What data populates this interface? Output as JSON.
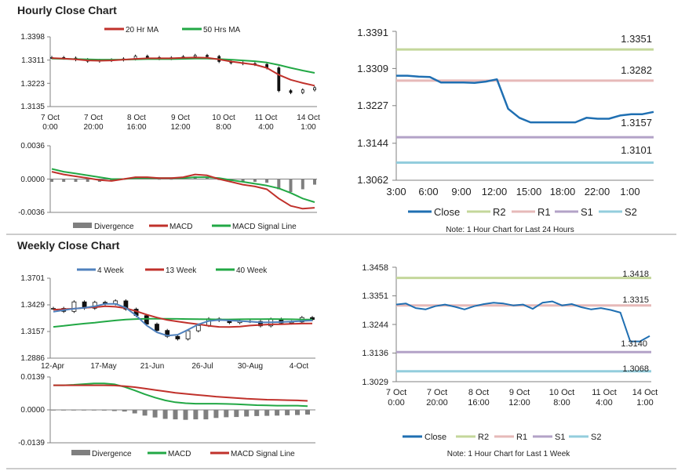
{
  "titles": {
    "hourly": "Hourly Close Chart",
    "weekly": "Weekly Close Chart"
  },
  "colors": {
    "ma20": "#c0312b",
    "ma50": "#22a845",
    "w4": "#4f81bd",
    "w13": "#c0312b",
    "w40": "#22a845",
    "macd_red": "#c0312b",
    "signal_green": "#22a845",
    "close": "#1f6fb2",
    "r2": "#c4d79b",
    "r1": "#e6b9b8",
    "s1": "#b3a2c7",
    "s2": "#93cddd",
    "divergence": "#7f7f7f",
    "axis": "#808080",
    "text": "#222222"
  },
  "chart_data": [
    {
      "id": "hourly_price",
      "type": "line",
      "legend": [
        "20 Hr MA",
        "50 Hrs MA"
      ],
      "y_ticks": [
        "1.3398",
        "1.3311",
        "1.3223",
        "1.3135"
      ],
      "ylim": [
        1.3135,
        1.3398
      ],
      "x_ticks": [
        [
          "7 Oct",
          "0:00"
        ],
        [
          "7 Oct",
          "20:00"
        ],
        [
          "8 Oct",
          "16:00"
        ],
        [
          "9 Oct",
          "12:00"
        ],
        [
          "10 Oct",
          "8:00"
        ],
        [
          "11 Oct",
          "4:00"
        ],
        [
          "14 Oct",
          "1:00"
        ]
      ],
      "close": [
        1.332,
        1.3318,
        1.3312,
        1.3306,
        1.3309,
        1.3311,
        1.3315,
        1.3325,
        1.332,
        1.3316,
        1.3319,
        1.3323,
        1.3328,
        1.3324,
        1.3305,
        1.33,
        1.3297,
        1.3294,
        1.3281,
        1.3195,
        1.3188,
        1.3198,
        1.3206
      ],
      "ma20": [
        1.3318,
        1.3316,
        1.3313,
        1.3309,
        1.3308,
        1.3309,
        1.3312,
        1.3315,
        1.3317,
        1.3317,
        1.3317,
        1.3319,
        1.332,
        1.3319,
        1.3313,
        1.3305,
        1.3299,
        1.3293,
        1.3281,
        1.3255,
        1.3236,
        1.3224,
        1.3214
      ],
      "ma50": [
        1.3316,
        1.3315,
        1.3314,
        1.3313,
        1.3312,
        1.3312,
        1.3312,
        1.3313,
        1.3314,
        1.3314,
        1.3314,
        1.3315,
        1.3316,
        1.3316,
        1.3314,
        1.3312,
        1.3309,
        1.3306,
        1.3301,
        1.3292,
        1.3281,
        1.3271,
        1.3262
      ]
    },
    {
      "id": "hourly_macd",
      "type": "line",
      "legend": [
        "Divergence",
        "MACD",
        "MACD Signal Line"
      ],
      "y_ticks": [
        "0.0036",
        "0.0000",
        "-0.0036"
      ],
      "ylim": [
        -0.0036,
        0.0036
      ],
      "macd": [
        0.0008,
        0.0005,
        0.0003,
        0.0001,
        -0.0001,
        -0.0002,
        0.0,
        0.0002,
        0.0002,
        0.0001,
        0.0001,
        0.0002,
        0.0005,
        0.0004,
        0.0,
        -0.0003,
        -0.0006,
        -0.0008,
        -0.0011,
        -0.0021,
        -0.0029,
        -0.0032,
        -0.0031
      ],
      "signal": [
        0.0011,
        0.0008,
        0.0006,
        0.0004,
        0.0002,
        0.0,
        0.0,
        0.0001,
        0.0001,
        0.0001,
        0.0001,
        0.0001,
        0.0002,
        0.0002,
        0.0001,
        -0.0001,
        -0.0003,
        -0.0005,
        -0.0007,
        -0.001,
        -0.0015,
        -0.0021,
        -0.0025
      ],
      "divergence": [
        -0.0003,
        -0.0003,
        -0.0003,
        -0.0003,
        -0.0003,
        -0.0002,
        0.0,
        0.0001,
        0.0001,
        0.0,
        0.0,
        0.0001,
        0.0003,
        0.0002,
        -0.0001,
        -0.0002,
        -0.0003,
        -0.0003,
        -0.0004,
        -0.0011,
        -0.0014,
        -0.0011,
        -0.0006
      ]
    },
    {
      "id": "hourly_levels",
      "type": "line",
      "legend": [
        "Close",
        "R2",
        "R1",
        "S1",
        "S2"
      ],
      "y_ticks": [
        "1.3391",
        "1.3309",
        "1.3227",
        "1.3144",
        "1.3062"
      ],
      "ylim": [
        1.3062,
        1.3391
      ],
      "x_ticks": [
        "3:00",
        "6:00",
        "9:00",
        "12:00",
        "15:00",
        "18:00",
        "22:00",
        "1:00"
      ],
      "level_labels": [
        "1.3351",
        "1.3282",
        "1.3157",
        "1.3101"
      ],
      "levels": {
        "r2": 1.3351,
        "r1": 1.3282,
        "s1": 1.3157,
        "s2": 1.3101
      },
      "close": [
        1.3293,
        1.3293,
        1.3291,
        1.329,
        1.3278,
        1.3278,
        1.3278,
        1.3277,
        1.328,
        1.3285,
        1.322,
        1.32,
        1.319,
        1.319,
        1.319,
        1.319,
        1.319,
        1.32,
        1.3198,
        1.3198,
        1.3205,
        1.3208,
        1.3208,
        1.3213
      ],
      "note": "Note: 1 Hour Chart for Last 24 Hours"
    },
    {
      "id": "weekly_price",
      "type": "line",
      "legend": [
        "4 Week",
        "13 Week",
        "40 Week"
      ],
      "y_ticks": [
        "1.3701",
        "1.3429",
        "1.3157",
        "1.2886"
      ],
      "ylim": [
        1.2886,
        1.3701
      ],
      "x_ticks": [
        "12-Apr",
        "17-May",
        "21-Jun",
        "26-Jul",
        "30-Aug",
        "4-Oct"
      ],
      "close": [
        1.3393,
        1.3363,
        1.346,
        1.3395,
        1.3455,
        1.344,
        1.347,
        1.3385,
        1.332,
        1.3233,
        1.3168,
        1.3108,
        1.3082,
        1.3165,
        1.322,
        1.3287,
        1.327,
        1.3248,
        1.3262,
        1.326,
        1.3215,
        1.3283,
        1.3245,
        1.3255,
        1.33,
        1.328
      ],
      "w4": [
        1.336,
        1.3375,
        1.339,
        1.34,
        1.3415,
        1.344,
        1.344,
        1.34,
        1.332,
        1.322,
        1.315,
        1.3115,
        1.3125,
        1.3175,
        1.323,
        1.3265,
        1.3275,
        1.327,
        1.3265,
        1.3258,
        1.325,
        1.3252,
        1.3254,
        1.326,
        1.3265,
        1.327
      ],
      "w13": [
        1.338,
        1.3385,
        1.339,
        1.34,
        1.3405,
        1.3415,
        1.341,
        1.3395,
        1.3365,
        1.333,
        1.33,
        1.3275,
        1.326,
        1.3245,
        1.3232,
        1.3215,
        1.3205,
        1.3203,
        1.3208,
        1.3218,
        1.3225,
        1.323,
        1.3232,
        1.3235,
        1.3238,
        1.324
      ],
      "w40": [
        1.3205,
        1.3215,
        1.3228,
        1.3238,
        1.3248,
        1.326,
        1.327,
        1.328,
        1.3285,
        1.3287,
        1.3288,
        1.3288,
        1.3286,
        1.3285,
        1.3283,
        1.3282,
        1.3281,
        1.3281,
        1.3282,
        1.3283,
        1.3284,
        1.3285,
        1.3284,
        1.3282,
        1.328,
        1.3279
      ]
    },
    {
      "id": "weekly_macd",
      "type": "line",
      "legend": [
        "Divergence",
        "MACD",
        "MACD Signal Line"
      ],
      "y_ticks": [
        "0.0139",
        "0.0000",
        "-0.0139"
      ],
      "ylim": [
        -0.0139,
        0.0139
      ],
      "macd": [
        0.0104,
        0.0104,
        0.0106,
        0.0109,
        0.0112,
        0.0112,
        0.0108,
        0.0097,
        0.0082,
        0.0066,
        0.0052,
        0.004,
        0.0032,
        0.0028,
        0.0026,
        0.0026,
        0.0026,
        0.0025,
        0.0024,
        0.0022,
        0.002,
        0.0019,
        0.0018,
        0.0018,
        0.0018,
        0.0016
      ],
      "signal": [
        0.0104,
        0.0104,
        0.0104,
        0.0104,
        0.0104,
        0.0104,
        0.0103,
        0.01,
        0.0096,
        0.009,
        0.0084,
        0.0078,
        0.0072,
        0.0068,
        0.0064,
        0.006,
        0.0056,
        0.0053,
        0.005,
        0.0047,
        0.0045,
        0.0043,
        0.0042,
        0.0041,
        0.004,
        0.0038
      ],
      "divergence": [
        -0.0002,
        -0.0002,
        -0.0002,
        -0.0002,
        -0.0002,
        -0.0003,
        -0.0005,
        -0.0007,
        -0.0015,
        -0.0024,
        -0.0032,
        -0.0038,
        -0.004,
        -0.0042,
        -0.004,
        -0.004,
        -0.0034,
        -0.0031,
        -0.003,
        -0.0028,
        -0.0026,
        -0.0025,
        -0.0024,
        -0.0023,
        -0.0022,
        -0.002
      ]
    },
    {
      "id": "weekly_levels",
      "type": "line",
      "legend": [
        "Close",
        "R2",
        "R1",
        "S1",
        "S2"
      ],
      "y_ticks": [
        "1.3458",
        "1.3351",
        "1.3244",
        "1.3136",
        "1.3029"
      ],
      "ylim": [
        1.3029,
        1.3458
      ],
      "x_ticks": [
        [
          "7 Oct",
          "0:00"
        ],
        [
          "7 Oct",
          "20:00"
        ],
        [
          "8 Oct",
          "16:00"
        ],
        [
          "9 Oct",
          "12:00"
        ],
        [
          "10 Oct",
          "8:00"
        ],
        [
          "11 Oct",
          "4:00"
        ],
        [
          "14 Oct",
          "1:00"
        ]
      ],
      "level_labels": [
        "1.3418",
        "1.3315",
        "1.3140",
        "1.3068"
      ],
      "levels": {
        "r2": 1.3418,
        "r1": 1.3315,
        "s1": 1.314,
        "s2": 1.3068
      },
      "close": [
        1.3318,
        1.3322,
        1.3305,
        1.33,
        1.3312,
        1.3318,
        1.331,
        1.33,
        1.3312,
        1.332,
        1.3325,
        1.3322,
        1.3315,
        1.3318,
        1.3302,
        1.3325,
        1.333,
        1.3315,
        1.332,
        1.3308,
        1.33,
        1.3305,
        1.3298,
        1.3288,
        1.318,
        1.318,
        1.32
      ],
      "note": "Note: 1 Hour Chart for Last 1 Week"
    }
  ]
}
